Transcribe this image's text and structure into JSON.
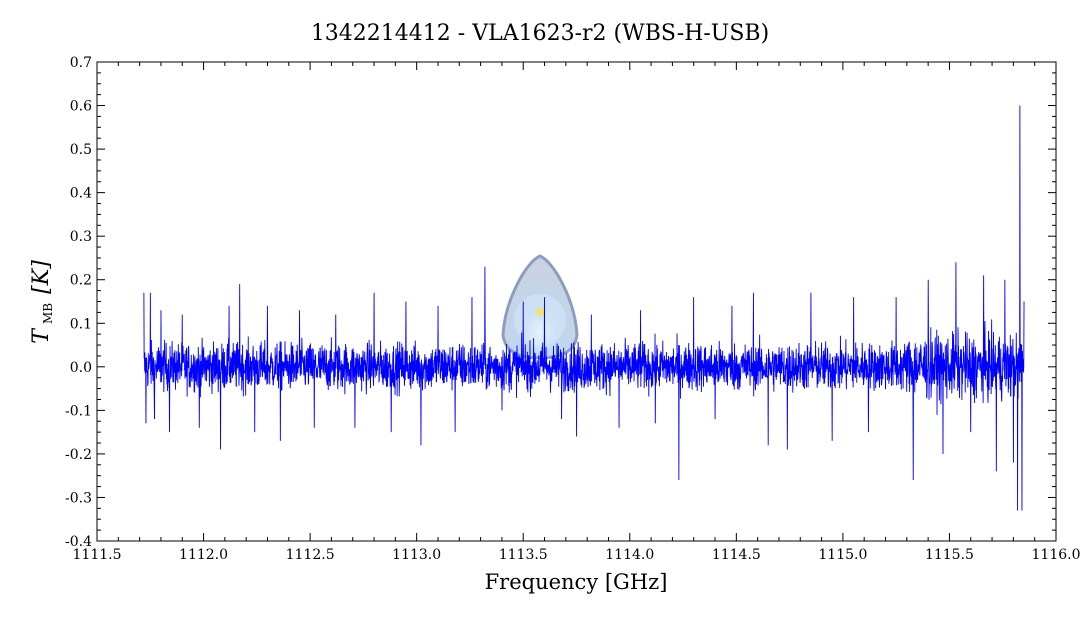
{
  "chart_data": {
    "type": "line",
    "title": "1342214412 - VLA1623-r2 (WBS-H-USB)",
    "xlabel": "Frequency [GHz]",
    "ylabel_main": "T",
    "ylabel_sub": "MB",
    "ylabel_unit": "[K]",
    "xlim": [
      1111.5,
      1116.0
    ],
    "ylim": [
      -0.4,
      0.7
    ],
    "x_ticks": [
      "1111.5",
      "1112.0",
      "1112.5",
      "1113.0",
      "1113.5",
      "1114.0",
      "1114.5",
      "1115.0",
      "1115.5",
      "1116.0"
    ],
    "y_ticks": [
      "-0.4",
      "-0.3",
      "-0.2",
      "-0.1",
      "0.0",
      "0.1",
      "0.2",
      "0.3",
      "0.4",
      "0.5",
      "0.6",
      "0.7"
    ],
    "grid": false,
    "series": [
      {
        "color": "#0000ff",
        "x_range": [
          1111.72,
          1115.85
        ],
        "baseline": 0.0,
        "noise_rms": 0.05,
        "values": [
          [
            1111.72,
            0.17
          ],
          [
            1111.73,
            -0.13
          ],
          [
            1111.75,
            0.17
          ],
          [
            1111.77,
            -0.12
          ],
          [
            1111.8,
            0.13
          ],
          [
            1111.84,
            -0.15
          ],
          [
            1111.9,
            0.12
          ],
          [
            1111.98,
            -0.14
          ],
          [
            1112.08,
            -0.19
          ],
          [
            1112.12,
            0.14
          ],
          [
            1112.17,
            0.19
          ],
          [
            1112.24,
            -0.15
          ],
          [
            1112.3,
            0.14
          ],
          [
            1112.36,
            -0.17
          ],
          [
            1112.45,
            0.13
          ],
          [
            1112.52,
            -0.14
          ],
          [
            1112.62,
            0.12
          ],
          [
            1112.71,
            -0.14
          ],
          [
            1112.8,
            0.17
          ],
          [
            1112.88,
            -0.15
          ],
          [
            1112.95,
            0.15
          ],
          [
            1113.02,
            -0.18
          ],
          [
            1113.1,
            0.14
          ],
          [
            1113.18,
            -0.15
          ],
          [
            1113.26,
            0.16
          ],
          [
            1113.32,
            0.23
          ],
          [
            1113.4,
            -0.1
          ],
          [
            1113.5,
            0.15
          ],
          [
            1113.6,
            0.16
          ],
          [
            1113.68,
            -0.12
          ],
          [
            1113.75,
            -0.16
          ],
          [
            1113.82,
            0.12
          ],
          [
            1113.95,
            -0.14
          ],
          [
            1114.05,
            0.13
          ],
          [
            1114.12,
            -0.13
          ],
          [
            1114.23,
            -0.26
          ],
          [
            1114.3,
            0.16
          ],
          [
            1114.4,
            -0.12
          ],
          [
            1114.48,
            0.14
          ],
          [
            1114.58,
            0.17
          ],
          [
            1114.65,
            -0.18
          ],
          [
            1114.74,
            -0.19
          ],
          [
            1114.85,
            0.17
          ],
          [
            1114.95,
            -0.17
          ],
          [
            1115.05,
            0.16
          ],
          [
            1115.12,
            -0.15
          ],
          [
            1115.25,
            0.16
          ],
          [
            1115.33,
            -0.26
          ],
          [
            1115.4,
            0.2
          ],
          [
            1115.47,
            -0.2
          ],
          [
            1115.53,
            0.24
          ],
          [
            1115.6,
            -0.15
          ],
          [
            1115.66,
            0.21
          ],
          [
            1115.72,
            -0.24
          ],
          [
            1115.76,
            0.2
          ],
          [
            1115.8,
            -0.22
          ],
          [
            1115.82,
            -0.33
          ],
          [
            1115.83,
            0.6
          ],
          [
            1115.84,
            -0.33
          ],
          [
            1115.85,
            0.15
          ]
        ]
      }
    ]
  },
  "watermark": "herschel-logo-icon"
}
